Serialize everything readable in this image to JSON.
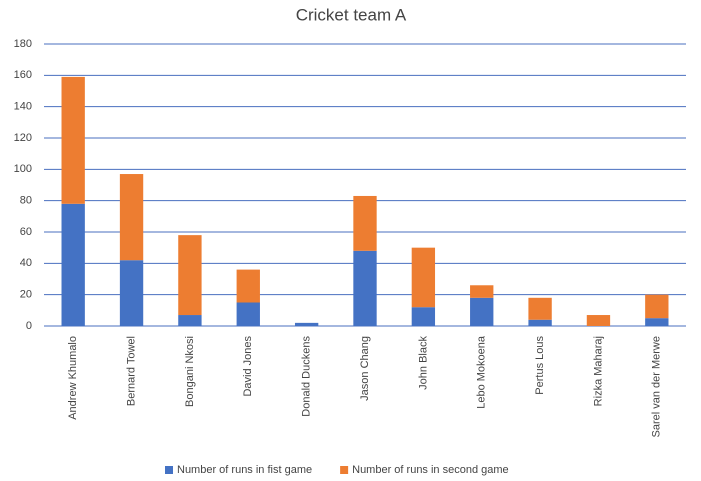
{
  "chart_data": {
    "type": "bar",
    "stacked": true,
    "title": "Cricket team A",
    "categories": [
      "Andrew Khumalo",
      "Bernard Towel",
      "Bongani Nkosi",
      "David Jones",
      "Donald Duckens",
      "Jason Chang",
      "John Black",
      "Lebo Mokoena",
      "Pertus Lous",
      "Rizka Maharaj",
      "Sarel van der Merwe"
    ],
    "series": [
      {
        "name": "Number of runs in fist game",
        "color": "#4472c4",
        "values": [
          78,
          42,
          7,
          15,
          2,
          48,
          12,
          18,
          4,
          0,
          5
        ]
      },
      {
        "name": "Number of runs in second game",
        "color": "#ed7d31",
        "values": [
          81,
          55,
          51,
          21,
          0,
          35,
          38,
          8,
          14,
          7,
          15
        ]
      }
    ],
    "ylim": [
      0,
      180
    ],
    "yticks": [
      0,
      20,
      40,
      60,
      80,
      100,
      120,
      140,
      160,
      180
    ],
    "grid": true,
    "legend": "bottom"
  }
}
